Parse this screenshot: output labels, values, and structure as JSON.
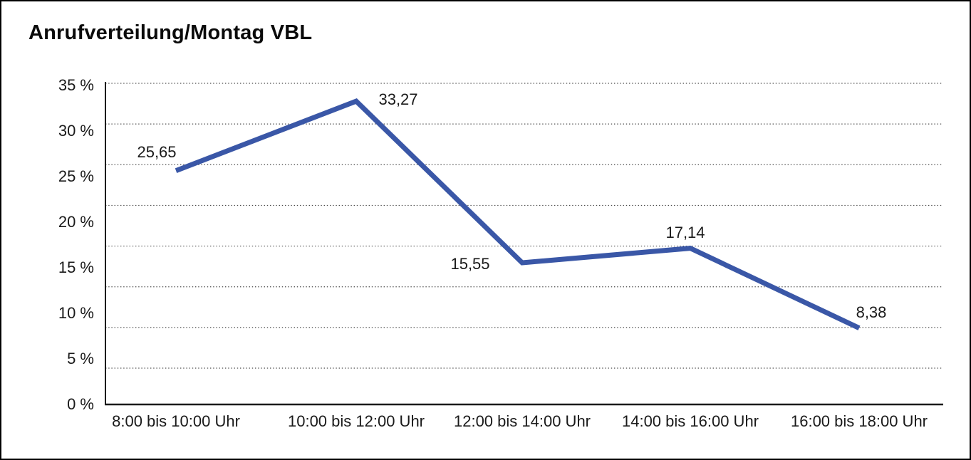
{
  "title": "Anrufverteilung/Montag VBL",
  "chart_data": {
    "type": "line",
    "title": "Anrufverteilung/Montag VBL",
    "categories": [
      "8:00 bis 10:00 Uhr",
      "10:00 bis 12:00 Uhr",
      "12:00 bis 14:00 Uhr",
      "14:00 bis 16:00 Uhr",
      "16:00 bis 18:00 Uhr"
    ],
    "values": [
      25.65,
      33.27,
      15.55,
      17.14,
      8.38
    ],
    "point_labels": [
      "25,65",
      "33,27",
      "15,55",
      "17,14",
      "8,38"
    ],
    "y_ticks": [
      "35 %",
      "30 %",
      "25 %",
      "20 %",
      "15 %",
      "10 %",
      "5 %",
      "0 %"
    ],
    "ylim": [
      0,
      35
    ],
    "xlabel": "",
    "ylabel": "",
    "legend": "none",
    "grid": "horizontal-dotted",
    "line_color": "#3A57A7",
    "axis_color": "#1a1a1a",
    "gridline_color": "#4a4a4a",
    "text_color": "#1a1a1a",
    "background_color": "#ffffff"
  }
}
